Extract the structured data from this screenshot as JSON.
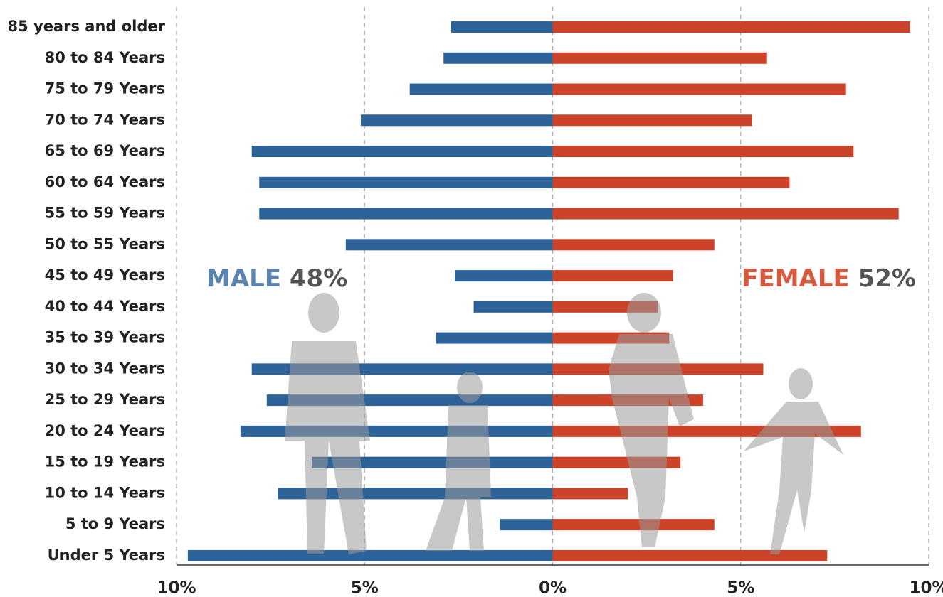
{
  "chart_data": {
    "type": "bar",
    "orientation": "horizontal",
    "categories": [
      "85 years and older",
      "80 to 84 Years",
      "75 to 79 Years",
      "70 to 74 Years",
      "65 to 69 Years",
      "60 to 64 Years",
      "55 to 59 Years",
      "50 to 55 Years",
      "45 to 49 Years",
      "40 to 44 Years",
      "35 to 39 Years",
      "30 to 34 Years",
      "25 to 29 Years",
      "20 to 24 Years",
      "15 to 19 Years",
      "10 to 14 Years",
      "5 to 9 Years",
      "Under 5 Years"
    ],
    "series": [
      {
        "name": "MALE",
        "color": "#2e6399",
        "values": [
          -2.7,
          -2.9,
          -3.8,
          -5.1,
          -8.0,
          -7.8,
          -7.8,
          -5.5,
          -2.6,
          -2.1,
          -3.1,
          -8.0,
          -7.6,
          -8.3,
          -6.4,
          -7.3,
          -1.4,
          -9.7
        ]
      },
      {
        "name": "FEMALE",
        "color": "#cc432a",
        "values": [
          9.5,
          5.7,
          7.8,
          5.3,
          8.0,
          6.3,
          9.2,
          4.3,
          3.2,
          2.8,
          3.1,
          5.6,
          4.0,
          8.2,
          3.4,
          2.0,
          4.3,
          7.3
        ]
      }
    ],
    "annotations": [
      {
        "label": "MALE",
        "share": "48%",
        "color": "#5b83b0"
      },
      {
        "label": "FEMALE",
        "share": "52%",
        "color": "#d85a3e"
      }
    ],
    "xlim": [
      -10,
      10
    ],
    "xticks": [
      {
        "value": -10,
        "label": "10%"
      },
      {
        "value": -5,
        "label": "5%"
      },
      {
        "value": 0,
        "label": "0%"
      },
      {
        "value": 5,
        "label": "5%"
      },
      {
        "value": 10,
        "label": "10%"
      }
    ],
    "grid": true
  }
}
